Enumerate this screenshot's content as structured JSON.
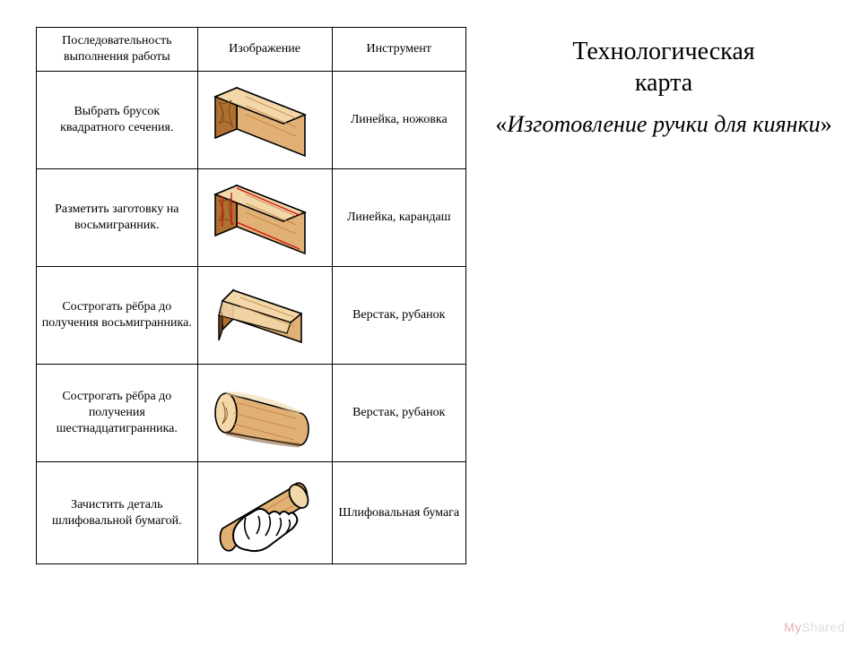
{
  "title": {
    "line1": "Технологическая",
    "line2": "карта",
    "sub_prefix": "«",
    "sub_text": "Изготовление ручки для киянки",
    "sub_suffix": "»"
  },
  "table": {
    "headers": {
      "step": "Последовательность выполнения работы",
      "image": "Изображение",
      "tool": "Инструмент"
    },
    "rows": [
      {
        "step": "Выбрать брусок квадратного сечения.",
        "tool": "Линейка, ножовка",
        "shape": "square"
      },
      {
        "step": "Разметить заготовку на восьмигранник.",
        "tool": "Линейка, карандаш",
        "shape": "square-marked"
      },
      {
        "step": "Сострогать рёбра до получения восьмигранника.",
        "tool": "Верстак, рубанок",
        "shape": "octagon"
      },
      {
        "step": "Сострогать рёбра до получения шестнадцатигранника.",
        "tool": "Верстак, рубанок",
        "shape": "round"
      },
      {
        "step": "Зачистить деталь шлифовальной бумагой.",
        "tool": "Шлифовальная бумага",
        "shape": "hand"
      }
    ],
    "colors": {
      "wood_light": "#f2d7a8",
      "wood_mid": "#e0b074",
      "wood_dark": "#b07030",
      "wood_shadow": "#7a4a20",
      "grain": "#c48040",
      "marking": "#d01010",
      "outline": "#000000",
      "hand_fill": "#ffffff"
    }
  },
  "watermark": {
    "my": "My",
    "shared": "Shared"
  }
}
